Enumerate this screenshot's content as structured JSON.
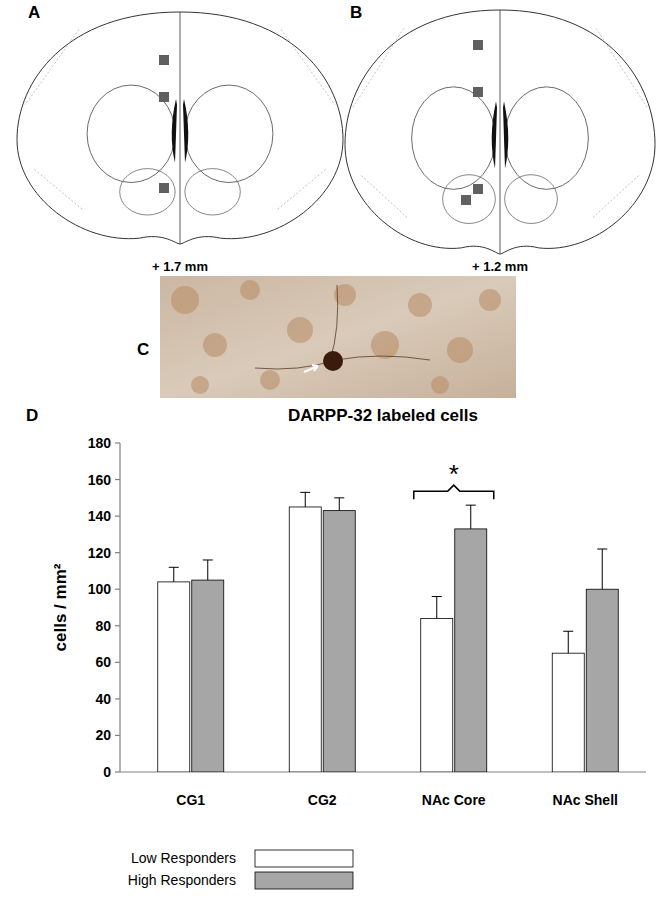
{
  "panels": [
    {
      "label": "A",
      "caption": "+ 1.7 mm"
    },
    {
      "label": "B",
      "caption": "+ 1.2 mm"
    },
    {
      "label": "C"
    }
  ],
  "chart_panel_label": "D",
  "chart_data": {
    "type": "bar",
    "title": "DARPP-32 labeled cells",
    "y_label": "cells / mm²",
    "categories": [
      "CG1",
      "CG2",
      "NAc Core",
      "NAc Shell"
    ],
    "series": [
      {
        "name": "Low Responders",
        "color": "#ffffff",
        "values": [
          104,
          145,
          84,
          65
        ],
        "errors": [
          8,
          8,
          12,
          12
        ]
      },
      {
        "name": "High Responders",
        "color": "#a6a6a6",
        "values": [
          105,
          143,
          133,
          100
        ],
        "errors": [
          11,
          7,
          13,
          22
        ]
      }
    ],
    "ylim": [
      0,
      180
    ],
    "yticks": [
      0,
      20,
      40,
      60,
      80,
      100,
      120,
      140,
      160,
      180
    ],
    "grid": false,
    "legend": "bottom",
    "annotations": [
      {
        "text": "*",
        "category": "NAc Core"
      }
    ]
  }
}
